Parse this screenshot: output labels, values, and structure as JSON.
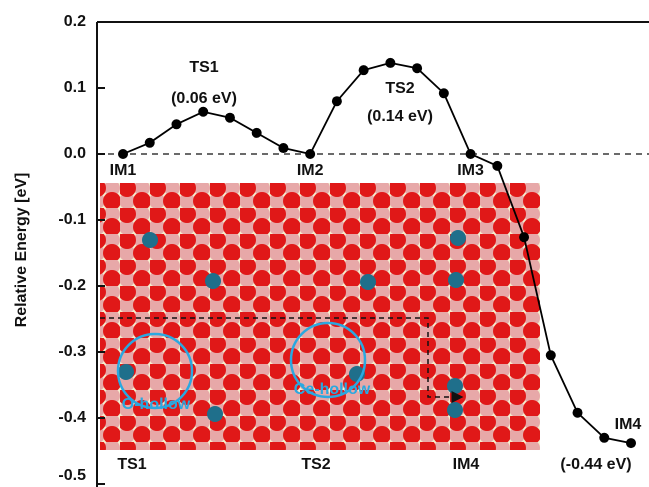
{
  "chart_data": {
    "type": "line",
    "y_label": "Relative Energy [eV]",
    "categories": [
      "IM1",
      null,
      null,
      null,
      null,
      null,
      null,
      "IM2",
      null,
      null,
      null,
      null,
      null,
      "IM3",
      null,
      null,
      null,
      null,
      null,
      "IM4"
    ],
    "values": [
      0,
      0.017,
      0.045,
      0.064,
      0.055,
      0.032,
      0.009,
      0,
      0.08,
      0.127,
      0.138,
      0.13,
      0.092,
      0,
      -0.018,
      -0.126,
      -0.305,
      -0.392,
      -0.43,
      -0.438
    ],
    "color": "#000000",
    "ylim": [
      -0.5,
      0.2
    ],
    "yticks": [
      -0.5,
      -0.4,
      -0.3,
      -0.2,
      -0.1,
      {
        "value": 0,
        "label": "0.0"
      },
      0.1,
      0.2
    ],
    "annotations": [
      "TS1",
      "(0.06 eV)",
      "TS2",
      "(0.14 eV)",
      "(-0.44 eV)"
    ],
    "inset": {
      "labels": [
        "TS1",
        "TS2",
        "IM4"
      ],
      "sites": [
        "O-hollow",
        "Ce-hollow"
      ]
    }
  }
}
